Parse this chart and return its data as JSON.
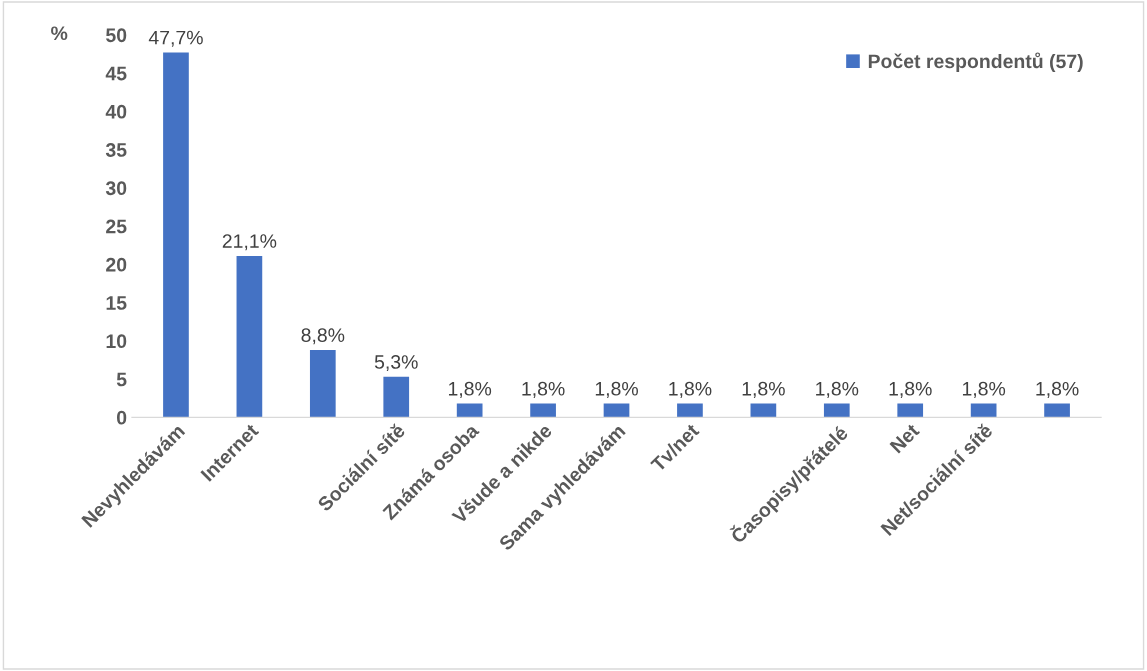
{
  "chart_data": {
    "type": "bar",
    "ylabel": "%",
    "categories": [
      "Nevyhledávám",
      "Internet",
      null,
      "Sociální sítě",
      "Známá osoba",
      "Všude a nikde",
      "Sama vyhledávám",
      "Tv/net",
      null,
      "Časopisy/přátelé",
      "Net",
      "Net/sociální sítě",
      null
    ],
    "series": [
      {
        "name": "Počet respondentů (57)",
        "color": "#4472c4",
        "values": [
          47.7,
          21.1,
          8.8,
          5.3,
          1.8,
          1.8,
          1.8,
          1.8,
          1.8,
          1.8,
          1.8,
          1.8,
          1.8
        ],
        "value_labels": [
          "47,7%",
          "21,1%",
          "8,8%",
          "5,3%",
          "1,8%",
          "1,8%",
          "1,8%",
          "1,8%",
          "1,8%",
          "1,8%",
          "1,8%",
          "1,8%",
          "1,8%"
        ]
      }
    ],
    "ylim": [
      0,
      50
    ],
    "yticks": [
      0,
      5,
      10,
      15,
      20,
      25,
      30,
      35,
      40,
      45,
      50
    ],
    "grid": false,
    "legend": "top right"
  }
}
